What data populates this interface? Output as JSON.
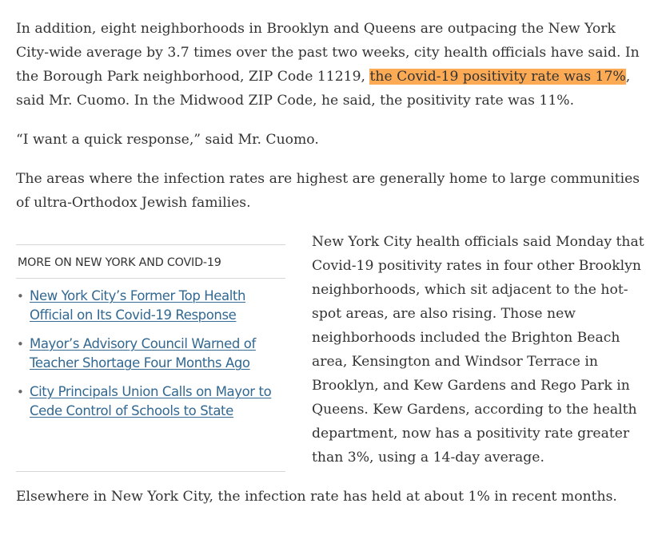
{
  "article": {
    "para1_before": "In addition, eight neighborhoods in Brooklyn and Queens are outpacing the New York City-wide average by 3.7 times over the past two weeks, city health officials have said. In the Borough Park neighborhood, ZIP Code 11219, ",
    "para1_highlight": "the Covid-19 positivity rate was 17%",
    "para1_after": ", said Mr. Cuomo. In the Midwood ZIP Code, he said, the positivity rate was 11%.",
    "para2": "“I want a quick response,” said Mr. Cuomo.",
    "para3": "The areas where the infection rates are highest are generally home to large communities of ultra-Orthodox Jewish families.",
    "para4": "New York City health officials said Monday that Covid-19 positivity rates in four other Brooklyn neighborhoods, which sit adjacent to the hot-spot areas, are also rising. Those new neighborhoods included the Brighton Beach area, Kensington and Windsor Terrace in Brooklyn, and Kew Gardens and Rego Park in Queens. Kew Gardens, according to the health department, now has a positivity rate greater than 3%, using a 14-day average.",
    "para5": "Elsewhere in New York City, the infection rate has held at about 1% in recent months."
  },
  "related": {
    "heading": "MORE ON NEW YORK AND COVID-19",
    "bullet": "•",
    "items": [
      {
        "label": "New York City’s Former Top Health Official on Its Covid-19 Response"
      },
      {
        "label": "Mayor’s Advisory Council Warned of Teacher Shortage Four Months Ago"
      },
      {
        "label": "City Principals Union Calls on Mayor to Cede Control of Schools to State"
      }
    ]
  },
  "colors": {
    "highlight": "#fdaa55",
    "link": "#326891",
    "body_text": "#333333",
    "rule": "#d6d6d6"
  }
}
